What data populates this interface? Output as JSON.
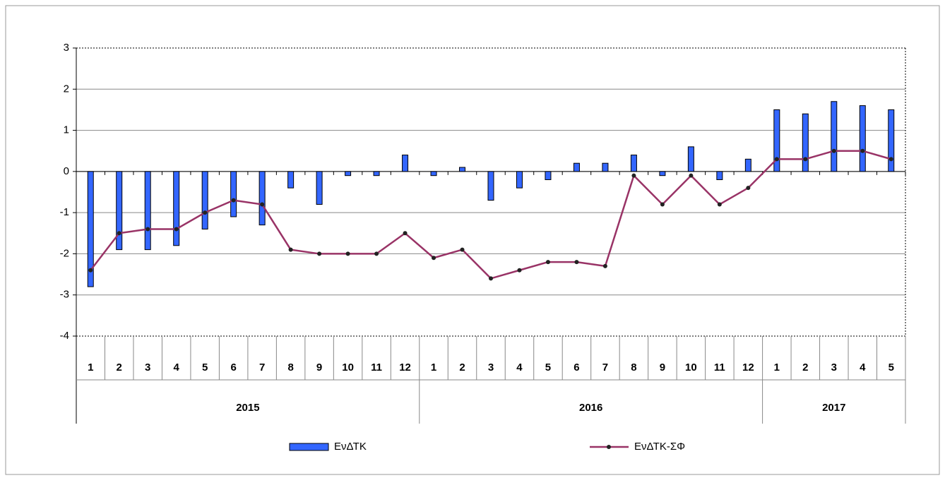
{
  "chart_data": {
    "type": "bar-line",
    "groups": [
      {
        "label": "2015",
        "categories": [
          "1",
          "2",
          "3",
          "4",
          "5",
          "6",
          "7",
          "8",
          "9",
          "10",
          "11",
          "12"
        ]
      },
      {
        "label": "2016",
        "categories": [
          "1",
          "2",
          "3",
          "4",
          "5",
          "6",
          "7",
          "8",
          "9",
          "10",
          "11",
          "12"
        ]
      },
      {
        "label": "2017",
        "categories": [
          "1",
          "2",
          "3",
          "4",
          "5"
        ]
      }
    ],
    "series": [
      {
        "name": "ΕνΔΤΚ",
        "type": "bar",
        "color": "#3366ff",
        "values": [
          -2.8,
          -1.9,
          -1.9,
          -1.8,
          -1.4,
          -1.1,
          -1.3,
          -0.4,
          -0.8,
          -0.1,
          -0.1,
          0.4,
          -0.1,
          0.1,
          -0.7,
          -0.4,
          -0.2,
          0.2,
          0.2,
          0.4,
          -0.1,
          0.6,
          -0.2,
          0.3,
          1.5,
          1.4,
          1.7,
          1.6,
          1.5
        ]
      },
      {
        "name": "ΕνΔΤΚ-ΣΦ",
        "type": "line",
        "color": "#993366",
        "values": [
          -2.4,
          -1.5,
          -1.4,
          -1.4,
          -1.0,
          -0.7,
          -0.8,
          -1.9,
          -2.0,
          -2.0,
          -2.0,
          -1.5,
          -2.1,
          -1.9,
          -2.6,
          -2.4,
          -2.2,
          -2.2,
          -2.3,
          -0.1,
          -0.8,
          -0.1,
          -0.8,
          -0.4,
          0.3,
          0.3,
          0.5,
          0.5,
          0.3
        ]
      }
    ],
    "ylim": [
      -4,
      3
    ],
    "yticks": [
      -4,
      -3,
      -2,
      -1,
      0,
      1,
      2,
      3
    ],
    "grid": true,
    "legend": "bottom"
  }
}
